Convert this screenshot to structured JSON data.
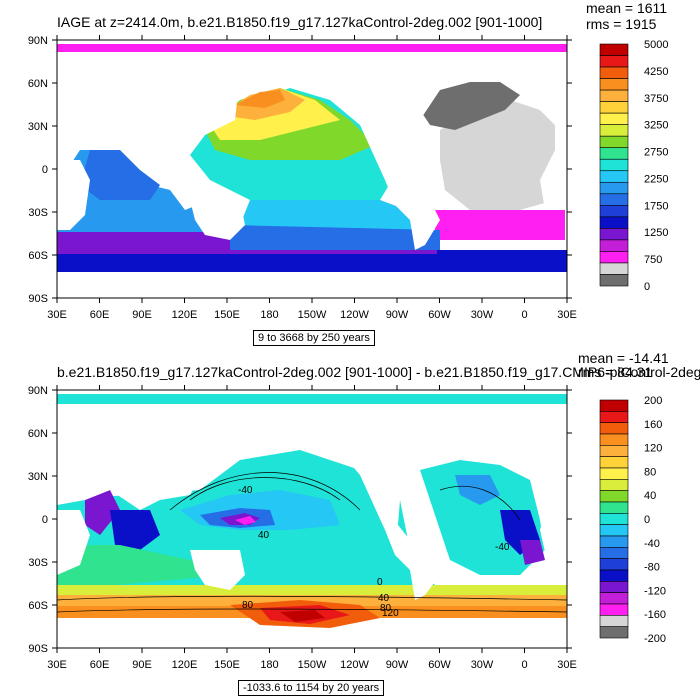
{
  "chart_data": [
    {
      "type": "heatmap",
      "title": "IAGE at z=2414.0m, b.e21.B1850.f19_g17.127kaControl-2deg.002 [901-1000]",
      "stats": {
        "mean": "mean = 1611",
        "rms": "rms = 1915"
      },
      "range_label": "9 to 3668 by 250 years",
      "x_ticks": [
        "30E",
        "60E",
        "90E",
        "120E",
        "150E",
        "180",
        "150W",
        "120W",
        "90W",
        "60W",
        "30W",
        "0",
        "30E"
      ],
      "y_ticks": [
        "90N",
        "60N",
        "30N",
        "0",
        "30S",
        "60S",
        "90S"
      ],
      "xlim": [
        30,
        390
      ],
      "ylim": [
        -90,
        90
      ],
      "colorbar": {
        "labels": [
          "5000",
          "4250",
          "3750",
          "3250",
          "2750",
          "2250",
          "1750",
          "1250",
          "750",
          "0"
        ],
        "colors": [
          "#c00000",
          "#e81818",
          "#f25d0c",
          "#f98f1f",
          "#fdb13c",
          "#ffd23a",
          "#fff04b",
          "#d8ee3b",
          "#7fd82a",
          "#2fe38f",
          "#1fe3d6",
          "#25c7f5",
          "#2799ee",
          "#256ee6",
          "#1e3fd8",
          "#0a10c8",
          "#7a16cf",
          "#c31ed8",
          "#ff1ff0",
          "#d6d6d6",
          "#6e6e6e"
        ]
      }
    },
    {
      "type": "heatmap",
      "title": "b.e21.B1850.f19_g17.127kaControl-2deg.002 [901-1000] - b.e21.B1850.f19_g17.CMIP6-piControl-2deg",
      "stats": {
        "mean": "mean = -14.41",
        "rms": "rms = 84.31"
      },
      "range_label": "-1033.6 to 1154 by 20 years",
      "x_ticks": [
        "30E",
        "60E",
        "90E",
        "120E",
        "150E",
        "180",
        "150W",
        "120W",
        "90W",
        "60W",
        "30W",
        "0",
        "30E"
      ],
      "y_ticks": [
        "90N",
        "60N",
        "30N",
        "0",
        "30S",
        "60S",
        "90S"
      ],
      "xlim": [
        30,
        390
      ],
      "ylim": [
        -90,
        90
      ],
      "contour_labels": [
        "-40",
        "40",
        "0",
        "40",
        "80",
        "120",
        "80",
        "-40"
      ],
      "colorbar": {
        "labels": [
          "200",
          "160",
          "120",
          "80",
          "40",
          "0",
          "-40",
          "-80",
          "-120",
          "-160",
          "-200"
        ],
        "colors": [
          "#c00000",
          "#e81818",
          "#f25d0c",
          "#f98f1f",
          "#fdb13c",
          "#ffd23a",
          "#fff04b",
          "#d8ee3b",
          "#7fd82a",
          "#2fe38f",
          "#1fe3d6",
          "#25c7f5",
          "#2799ee",
          "#256ee6",
          "#1e3fd8",
          "#0a10c8",
          "#7a16cf",
          "#c31ed8",
          "#ff1ff0",
          "#d6d6d6",
          "#6e6e6e"
        ]
      }
    }
  ]
}
